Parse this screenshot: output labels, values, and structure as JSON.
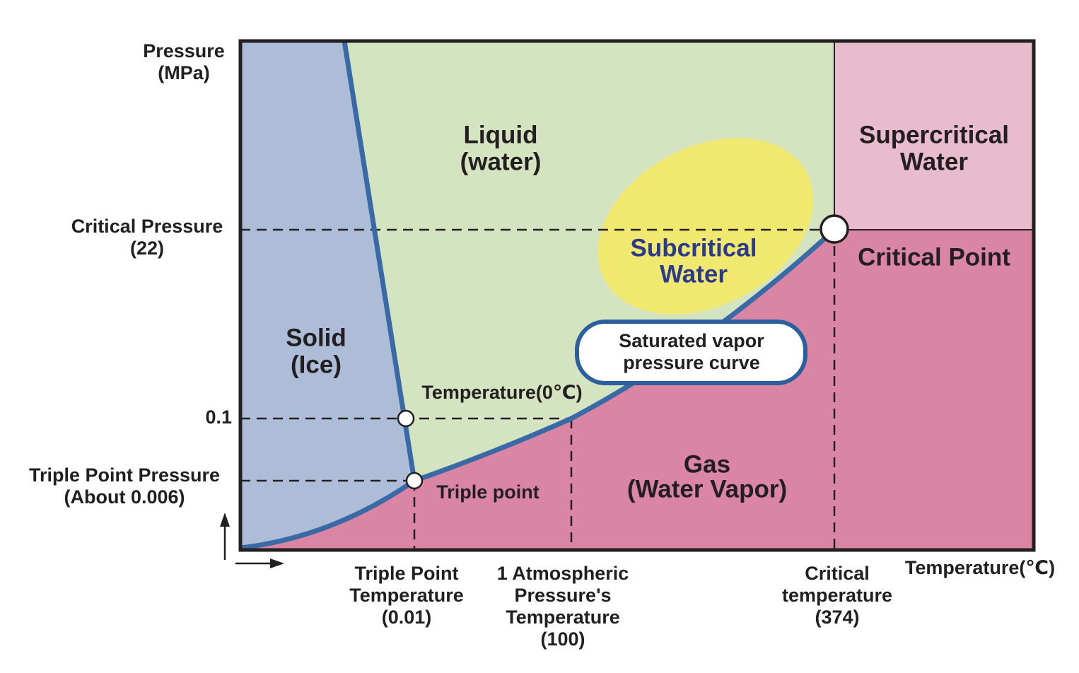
{
  "axes": {
    "y_label": [
      "Pressure",
      "(MPa)"
    ],
    "x_label": "Temperature(℃)"
  },
  "y_markers": [
    {
      "label": [
        "Critical Pressure",
        "(22)"
      ]
    },
    {
      "label": [
        "0.1"
      ]
    },
    {
      "label": [
        "Triple Point Pressure",
        "(About 0.006)"
      ]
    }
  ],
  "x_markers": [
    {
      "label": [
        "Triple Point",
        "Temperature",
        "(0.01)"
      ]
    },
    {
      "label": [
        "1 Atmospheric",
        "Pressure's",
        "Temperature",
        "(100)"
      ]
    },
    {
      "label": [
        "Critical",
        "temperature",
        "(374)"
      ]
    }
  ],
  "regions": [
    {
      "label": [
        "Solid",
        "(Ice)"
      ]
    },
    {
      "label": [
        "Liquid",
        "(water)"
      ]
    },
    {
      "label": [
        "Subcritical",
        "Water"
      ]
    },
    {
      "label": [
        "Supercritical",
        "Water"
      ]
    },
    {
      "label": [
        "Gas",
        "(Water Vapor)"
      ]
    }
  ],
  "points": [
    {
      "label": "Temperature(0℃)"
    },
    {
      "label": "Triple point"
    },
    {
      "label": "Critical Point"
    }
  ],
  "curve_label": [
    "Saturated vapor",
    "pressure curve"
  ]
}
